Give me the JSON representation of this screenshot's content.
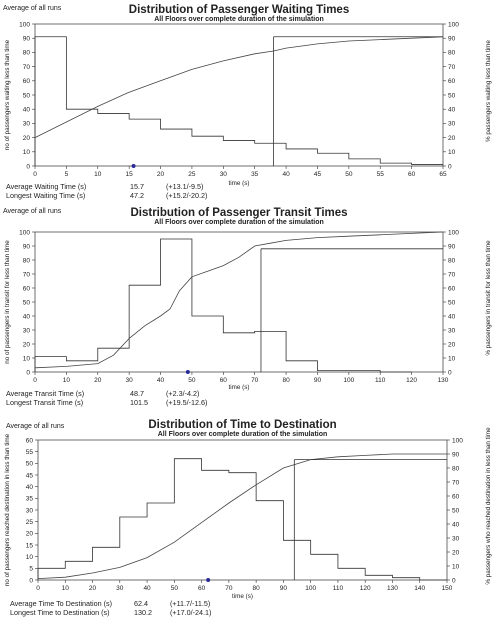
{
  "chart_data": [
    {
      "type": "line",
      "corner_label": "Average of all runs",
      "title": "Distribution of Passenger Waiting Times",
      "subtitle": "All Floors over complete duration of the simulation",
      "xlabel": "time (s)",
      "ylabel": "no of passengers waiting less than time",
      "y2label": "% passengers waiting less than time",
      "xlim": [
        0,
        65
      ],
      "ylim": [
        0,
        100
      ],
      "y2lim": [
        0,
        100
      ],
      "xticks": [
        0,
        5,
        10,
        15,
        20,
        25,
        30,
        35,
        40,
        45,
        50,
        55,
        60,
        65
      ],
      "yticks": [
        0,
        10,
        20,
        30,
        40,
        50,
        60,
        70,
        80,
        90,
        100
      ],
      "y2ticks": [
        0,
        10,
        20,
        30,
        40,
        50,
        60,
        70,
        80,
        90,
        100
      ],
      "series": [
        {
          "type": "step",
          "x": [
            0,
            5,
            10,
            15,
            20,
            25,
            30,
            35,
            40,
            45,
            50,
            55,
            60
          ],
          "values": [
            91,
            40,
            37,
            33,
            26,
            21,
            18,
            16,
            12,
            9,
            5,
            2,
            1
          ]
        },
        {
          "type": "line",
          "axis": "right",
          "x": [
            0,
            5,
            10,
            15,
            20,
            25,
            30,
            35,
            38,
            40,
            45,
            50,
            55,
            60,
            65
          ],
          "values": [
            20,
            31,
            42,
            52,
            60,
            68,
            74,
            79,
            81,
            83,
            86,
            88,
            89,
            90,
            91
          ]
        }
      ],
      "ref_line": {
        "x": 38,
        "y2": 91
      },
      "marker": {
        "x": 15.7
      },
      "stats": [
        {
          "label": "Average Waiting Time (s)",
          "value": "15.7",
          "range": "(+13.1/-9.5)"
        },
        {
          "label": "Longest Waiting Time (s)",
          "value": "47.2",
          "range": "(+15.2/-20.2)"
        }
      ]
    },
    {
      "type": "line",
      "corner_label": "Average of all runs",
      "title": "Distribution of Passenger Transit Times",
      "subtitle": "All Floors over complete duration of the simulation",
      "xlabel": "time (s)",
      "ylabel": "no of passengers in transit for less than time",
      "y2label": "% passengers in transit for less than time",
      "xlim": [
        0,
        130
      ],
      "ylim": [
        0,
        100
      ],
      "y2lim": [
        0,
        100
      ],
      "xticks": [
        0,
        10,
        20,
        30,
        40,
        50,
        60,
        70,
        80,
        90,
        100,
        110,
        120,
        130
      ],
      "yticks": [
        0,
        10,
        20,
        30,
        40,
        50,
        60,
        70,
        80,
        90,
        100
      ],
      "y2ticks": [
        0,
        10,
        20,
        30,
        40,
        50,
        60,
        70,
        80,
        90,
        100
      ],
      "series": [
        {
          "type": "step",
          "x": [
            0,
            10,
            20,
            30,
            40,
            50,
            60,
            70,
            80,
            90,
            100,
            110
          ],
          "values": [
            11,
            8,
            17,
            62,
            95,
            40,
            28,
            29,
            8,
            1,
            1,
            0
          ]
        },
        {
          "type": "line",
          "axis": "right",
          "x": [
            0,
            10,
            20,
            25,
            30,
            35,
            40,
            43,
            46,
            50,
            55,
            60,
            65,
            70,
            75,
            80,
            90,
            100,
            110,
            120,
            130
          ],
          "values": [
            3,
            4,
            6,
            12,
            24,
            33,
            40,
            45,
            58,
            68,
            72,
            76,
            82,
            90,
            92,
            94,
            96,
            97,
            98,
            99,
            100
          ]
        }
      ],
      "ref_line": {
        "x": 72,
        "y2": 88
      },
      "marker": {
        "x": 48.7
      },
      "stats": [
        {
          "label": "Average Transit Time (s)",
          "value": "48.7",
          "range": "(+2.3/-4.2)"
        },
        {
          "label": "Longest Transit Time (s)",
          "value": "101.5",
          "range": "(+19.5/-12.6)"
        }
      ]
    },
    {
      "type": "line",
      "corner_label": "Average of all runs",
      "title": "Distribution of Time to Destination",
      "subtitle": "All Floors over complete duration of the simulation",
      "xlabel": "time (s)",
      "ylabel": "no of passengers reached destination in less than time",
      "y2label": "% passengers who reached destination in less than time",
      "xlim": [
        0,
        150
      ],
      "ylim": [
        0,
        60
      ],
      "y2lim": [
        0,
        100
      ],
      "xticks": [
        0,
        10,
        20,
        30,
        40,
        50,
        60,
        70,
        80,
        90,
        100,
        110,
        120,
        130,
        140,
        150
      ],
      "yticks": [
        0,
        5,
        10,
        15,
        20,
        25,
        30,
        35,
        40,
        45,
        50,
        55,
        60
      ],
      "y2ticks": [
        0,
        10,
        20,
        30,
        40,
        50,
        60,
        70,
        80,
        90,
        100
      ],
      "series": [
        {
          "type": "step",
          "x": [
            0,
            10,
            20,
            30,
            40,
            50,
            60,
            70,
            80,
            90,
            100,
            110,
            120,
            130,
            140
          ],
          "values": [
            5,
            8,
            14,
            27,
            33,
            52,
            47,
            46,
            34,
            17,
            11,
            5,
            2,
            1,
            0
          ]
        },
        {
          "type": "line",
          "axis": "right",
          "x": [
            0,
            10,
            20,
            30,
            40,
            50,
            60,
            70,
            80,
            90,
            100,
            110,
            120,
            130,
            140,
            150
          ],
          "values": [
            1,
            2,
            5,
            9,
            16,
            27,
            41,
            55,
            68,
            80,
            86,
            88,
            89,
            90,
            90,
            90
          ]
        }
      ],
      "ref_line": {
        "x": 94,
        "y2": 86
      },
      "marker": {
        "x": 62.4
      },
      "stats": [
        {
          "label": "Average Time To Destination (s)",
          "value": "62.4",
          "range": "(+11.7/-11.5)"
        },
        {
          "label": "Longest Time to Destination (s)",
          "value": "130.2",
          "range": "(+17.0/-24.1)"
        }
      ]
    }
  ]
}
